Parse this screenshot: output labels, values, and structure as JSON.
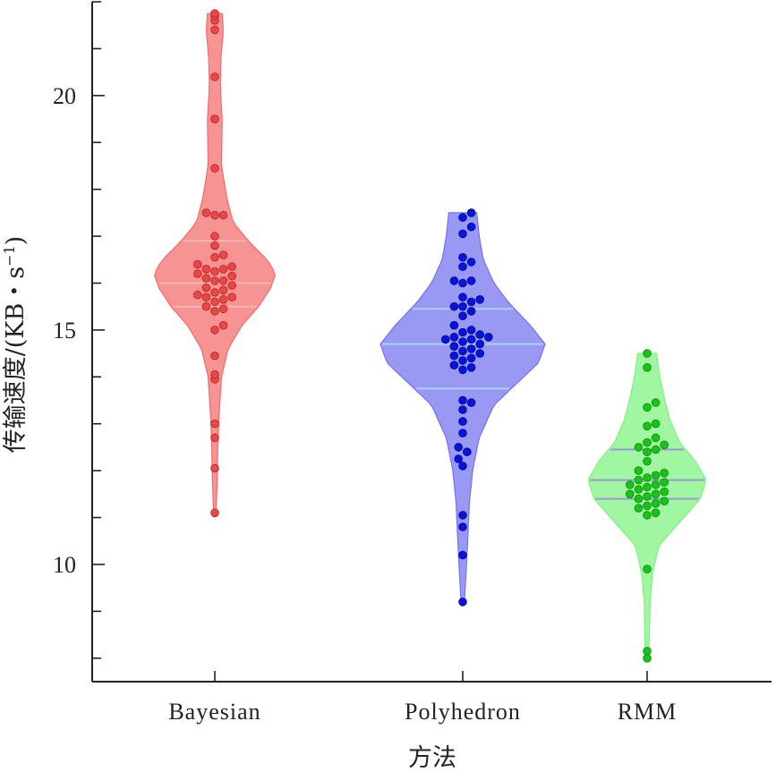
{
  "chart_data": {
    "type": "violin",
    "xlabel": "方法",
    "ylabel": "传输速度/(KB・s",
    "ylabel_sup": "−1",
    "ylabel_close": ")",
    "ylim": [
      7.5,
      22.0
    ],
    "yticks": [
      10,
      15,
      20
    ],
    "ytick_labels": [
      "10",
      "15",
      "20"
    ],
    "yminor_step": 1,
    "categories": [
      "Bayesian",
      "Polyhedron",
      "RMM"
    ],
    "series": [
      {
        "category": "Bayesian",
        "fill": "#f26b6b",
        "point_color": "#e84848",
        "point_edge": "#c42a2a",
        "quartile_color": "#f8b4b4",
        "min": 11.1,
        "max": 21.75,
        "quartiles": [
          15.5,
          16.0,
          16.9
        ],
        "density": [
          [
            11.1,
            0.02
          ],
          [
            11.8,
            0.04
          ],
          [
            12.5,
            0.05
          ],
          [
            13.2,
            0.07
          ],
          [
            14.0,
            0.11
          ],
          [
            14.6,
            0.22
          ],
          [
            15.1,
            0.45
          ],
          [
            15.5,
            0.72
          ],
          [
            15.9,
            0.92
          ],
          [
            16.2,
            1.0
          ],
          [
            16.5,
            0.86
          ],
          [
            16.9,
            0.55
          ],
          [
            17.3,
            0.3
          ],
          [
            17.8,
            0.2
          ],
          [
            18.5,
            0.11
          ],
          [
            19.5,
            0.12
          ],
          [
            20.2,
            0.09
          ],
          [
            20.8,
            0.1
          ],
          [
            21.4,
            0.14
          ],
          [
            21.75,
            0.12
          ]
        ],
        "points": [
          21.75,
          21.7,
          21.6,
          21.4,
          20.4,
          19.5,
          19.5,
          18.45,
          17.5,
          17.45,
          17.45,
          17.0,
          16.8,
          16.6,
          16.55,
          16.4,
          16.35,
          16.3,
          16.3,
          16.25,
          16.2,
          16.15,
          16.1,
          16.05,
          16.05,
          15.95,
          15.9,
          15.85,
          15.8,
          15.75,
          15.7,
          15.7,
          15.65,
          15.6,
          15.5,
          15.45,
          15.4,
          15.1,
          15.0,
          14.45,
          14.05,
          13.95,
          13.0,
          12.7,
          12.05,
          11.1
        ]
      },
      {
        "category": "Polyhedron",
        "fill": "#7272f0",
        "point_color": "#0a14d8",
        "point_edge": "#000aa8",
        "quartile_color": "#a8d0f0",
        "min": 9.2,
        "max": 17.5,
        "quartiles": [
          13.75,
          14.7,
          15.45
        ],
        "density": [
          [
            9.2,
            0.02
          ],
          [
            9.8,
            0.04
          ],
          [
            10.5,
            0.06
          ],
          [
            11.3,
            0.08
          ],
          [
            12.0,
            0.12
          ],
          [
            12.7,
            0.2
          ],
          [
            13.4,
            0.38
          ],
          [
            13.9,
            0.68
          ],
          [
            14.3,
            0.92
          ],
          [
            14.7,
            1.0
          ],
          [
            15.1,
            0.82
          ],
          [
            15.6,
            0.55
          ],
          [
            16.0,
            0.38
          ],
          [
            16.5,
            0.25
          ],
          [
            17.0,
            0.2
          ],
          [
            17.5,
            0.17
          ]
        ],
        "points": [
          17.5,
          17.4,
          17.2,
          17.05,
          16.55,
          16.45,
          16.35,
          16.05,
          16.05,
          16.0,
          15.7,
          15.65,
          15.6,
          15.5,
          15.5,
          15.4,
          15.3,
          15.1,
          15.0,
          14.95,
          14.9,
          14.85,
          14.85,
          14.8,
          14.8,
          14.75,
          14.7,
          14.65,
          14.6,
          14.55,
          14.5,
          14.45,
          14.4,
          14.35,
          14.25,
          14.2,
          14.15,
          13.5,
          13.45,
          13.3,
          13.05,
          12.8,
          12.5,
          12.4,
          12.25,
          12.1,
          11.05,
          10.8,
          10.2,
          9.2
        ]
      },
      {
        "category": "RMM",
        "fill": "#7df27d",
        "point_color": "#1cc21c",
        "point_edge": "#0a9a0a",
        "quartile_color": "#9a9ad8",
        "min": 8.0,
        "max": 14.5,
        "quartiles": [
          11.4,
          11.8,
          12.45
        ],
        "density": [
          [
            8.0,
            0.03
          ],
          [
            8.6,
            0.04
          ],
          [
            9.2,
            0.05
          ],
          [
            9.8,
            0.09
          ],
          [
            10.4,
            0.2
          ],
          [
            10.9,
            0.55
          ],
          [
            11.4,
            0.9
          ],
          [
            11.8,
            1.0
          ],
          [
            12.2,
            0.82
          ],
          [
            12.6,
            0.55
          ],
          [
            13.1,
            0.38
          ],
          [
            13.6,
            0.28
          ],
          [
            14.1,
            0.2
          ],
          [
            14.5,
            0.16
          ]
        ],
        "points": [
          14.5,
          14.2,
          13.45,
          13.35,
          13.0,
          12.95,
          12.7,
          12.6,
          12.55,
          12.5,
          12.45,
          12.4,
          12.2,
          12.0,
          11.95,
          11.9,
          11.85,
          11.8,
          11.75,
          11.7,
          11.7,
          11.65,
          11.6,
          11.55,
          11.5,
          11.5,
          11.45,
          11.4,
          11.35,
          11.3,
          11.25,
          11.2,
          11.1,
          11.05,
          9.9,
          8.15,
          8.0
        ]
      }
    ]
  }
}
